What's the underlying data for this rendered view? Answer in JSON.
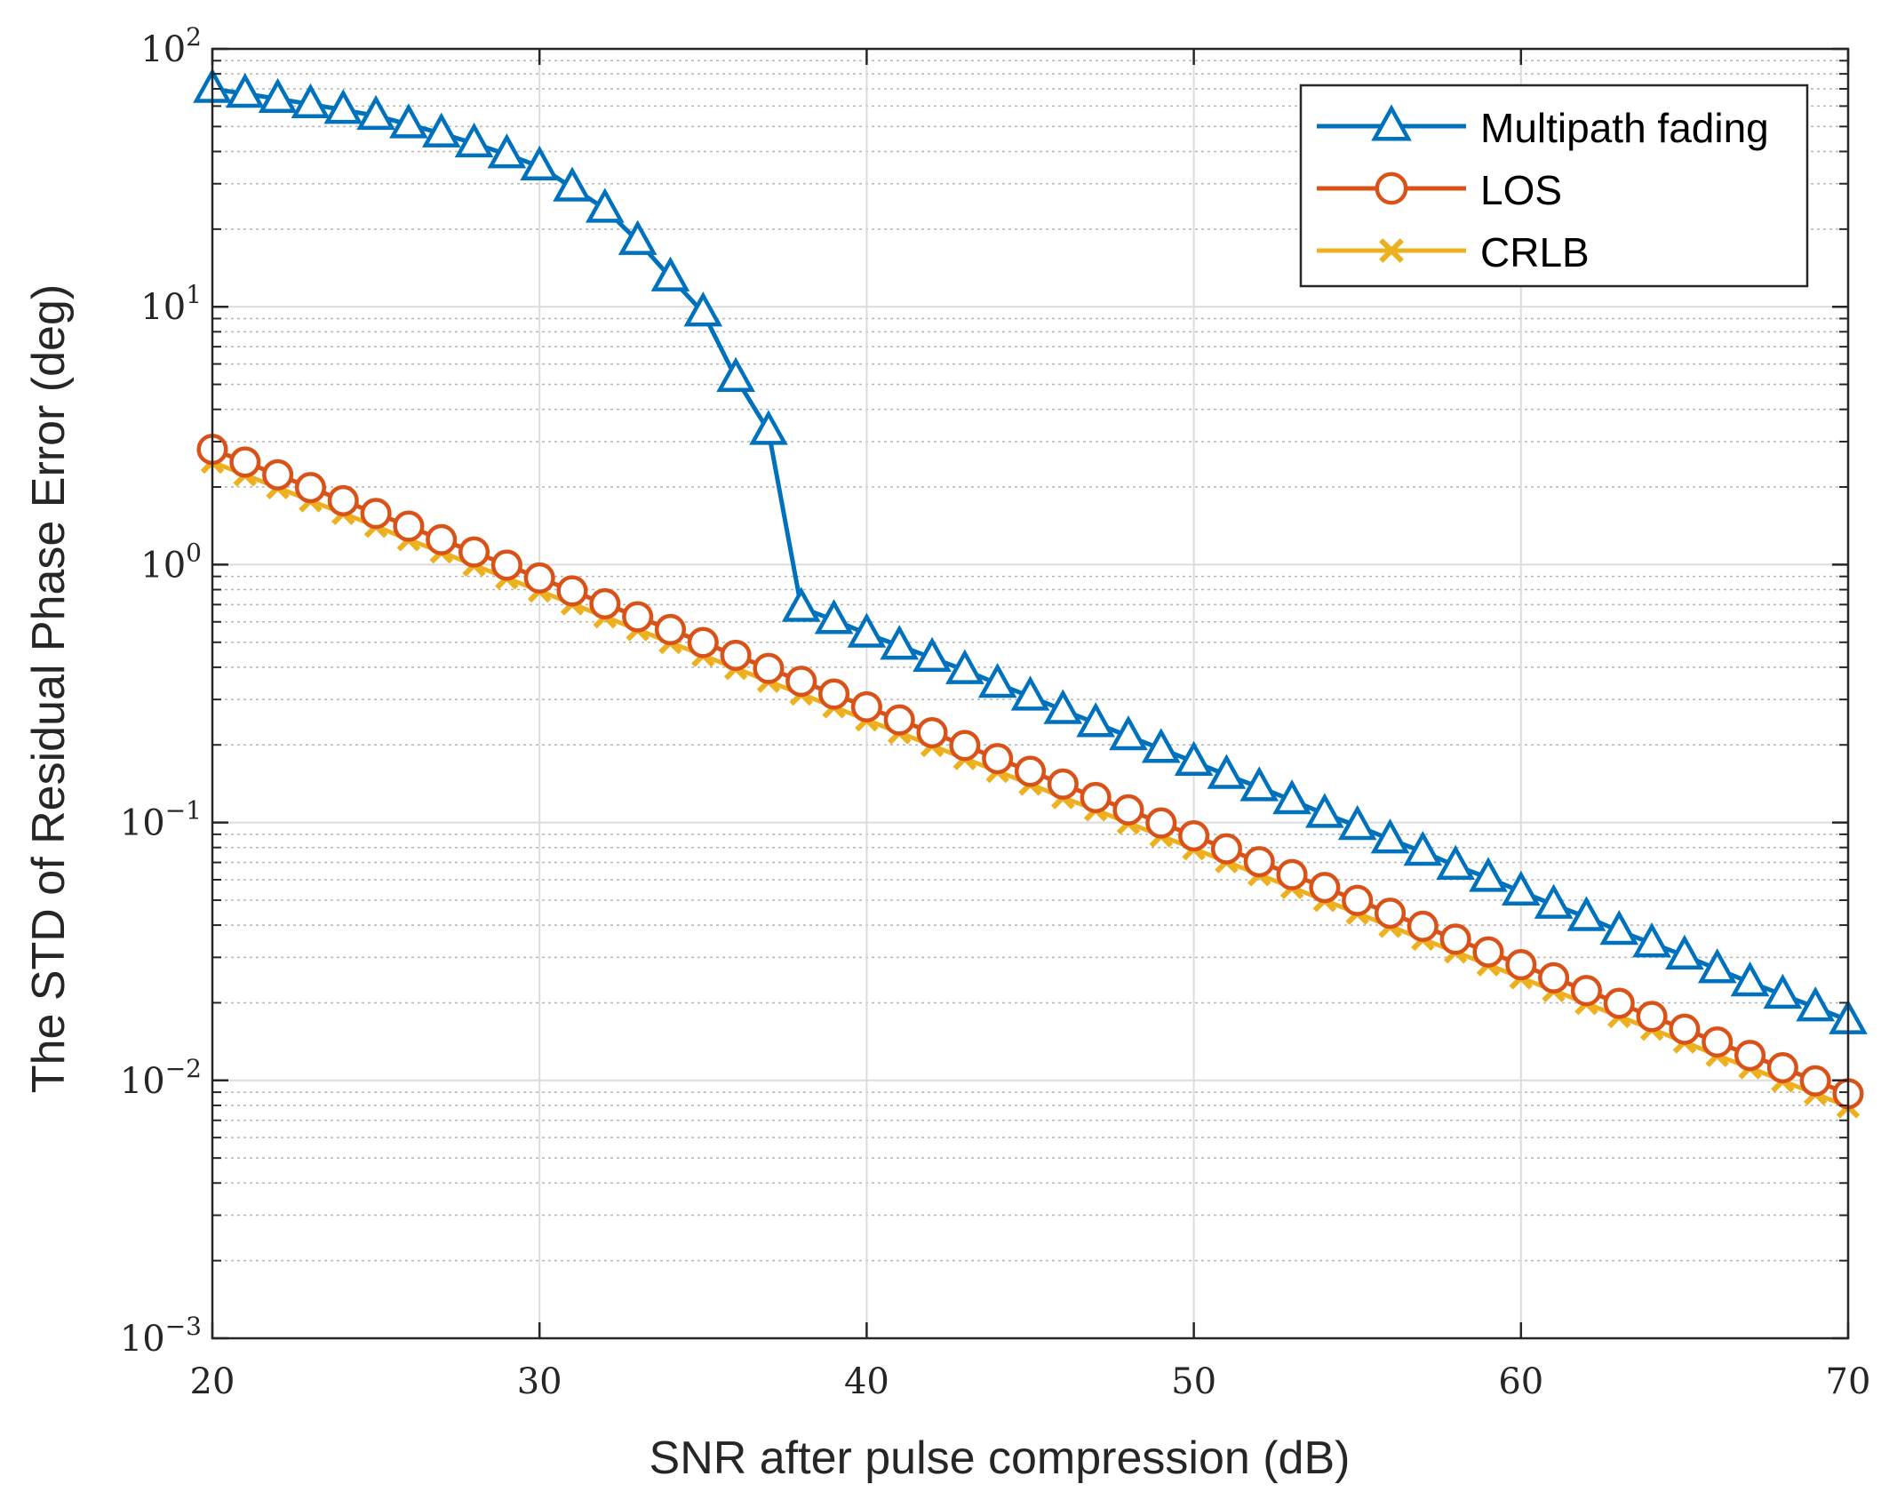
{
  "chart_data": {
    "type": "line",
    "title": "",
    "xlabel": "SNR after pulse compression (dB)",
    "ylabel": "The STD of Residual Phase Error (deg)",
    "xlim": [
      20,
      70
    ],
    "ylim": [
      0.001,
      100
    ],
    "yscale": "log",
    "grid": true,
    "legend_position": "top-right",
    "x_ticks": [
      "20",
      "30",
      "40",
      "50",
      "60",
      "70"
    ],
    "y_ticks": [
      {
        "base": "10",
        "exp": "2"
      },
      {
        "base": "10",
        "exp": "1"
      },
      {
        "base": "10",
        "exp": "0"
      },
      {
        "base": "10",
        "exp": "−1"
      },
      {
        "base": "10",
        "exp": "−2"
      },
      {
        "base": "10",
        "exp": "−3"
      }
    ],
    "x": [
      20,
      21,
      22,
      23,
      24,
      25,
      26,
      27,
      28,
      29,
      30,
      31,
      32,
      33,
      34,
      35,
      36,
      37,
      38,
      39,
      40,
      41,
      42,
      43,
      44,
      45,
      46,
      47,
      48,
      49,
      50,
      51,
      52,
      53,
      54,
      55,
      56,
      57,
      58,
      59,
      60,
      61,
      62,
      63,
      64,
      65,
      66,
      67,
      68,
      69,
      70
    ],
    "series": [
      {
        "name": "Multipath fading",
        "color": "#0072BD",
        "marker": "triangle",
        "values": [
          70,
          67,
          64,
          61,
          58,
          55,
          51,
          47,
          43,
          39,
          35,
          29,
          24,
          18,
          13,
          9.5,
          5.3,
          3.3,
          0.68,
          0.61,
          0.54,
          0.485,
          0.435,
          0.39,
          0.345,
          0.308,
          0.273,
          0.243,
          0.216,
          0.193,
          0.172,
          0.153,
          0.137,
          0.122,
          0.108,
          0.097,
          0.086,
          0.077,
          0.068,
          0.061,
          0.054,
          0.048,
          0.043,
          0.038,
          0.034,
          0.0305,
          0.027,
          0.024,
          0.0215,
          0.0192,
          0.0171
        ]
      },
      {
        "name": "LOS",
        "color": "#D95319",
        "marker": "circle",
        "values": [
          2.8,
          2.5,
          2.23,
          1.99,
          1.77,
          1.58,
          1.41,
          1.25,
          1.12,
          0.996,
          0.888,
          0.791,
          0.705,
          0.628,
          0.56,
          0.499,
          0.445,
          0.396,
          0.353,
          0.315,
          0.281,
          0.25,
          0.223,
          0.199,
          0.177,
          0.158,
          0.141,
          0.125,
          0.112,
          0.0996,
          0.0888,
          0.0791,
          0.0705,
          0.0628,
          0.056,
          0.0499,
          0.0445,
          0.0396,
          0.0353,
          0.0315,
          0.0281,
          0.025,
          0.0223,
          0.0199,
          0.0177,
          0.0158,
          0.0141,
          0.0125,
          0.0112,
          0.00996,
          0.00888
        ]
      },
      {
        "name": "CRLB",
        "color": "#EDB120",
        "marker": "x",
        "values": [
          2.5,
          2.23,
          1.99,
          1.77,
          1.58,
          1.41,
          1.25,
          1.12,
          0.996,
          0.888,
          0.791,
          0.705,
          0.628,
          0.56,
          0.499,
          0.445,
          0.396,
          0.353,
          0.315,
          0.281,
          0.25,
          0.223,
          0.199,
          0.177,
          0.158,
          0.141,
          0.125,
          0.112,
          0.0996,
          0.0888,
          0.0791,
          0.0705,
          0.0628,
          0.056,
          0.0499,
          0.0445,
          0.0396,
          0.0353,
          0.0315,
          0.0281,
          0.025,
          0.0223,
          0.0199,
          0.0177,
          0.0158,
          0.0141,
          0.0125,
          0.0112,
          0.00996,
          0.00888,
          0.00791
        ]
      }
    ]
  }
}
